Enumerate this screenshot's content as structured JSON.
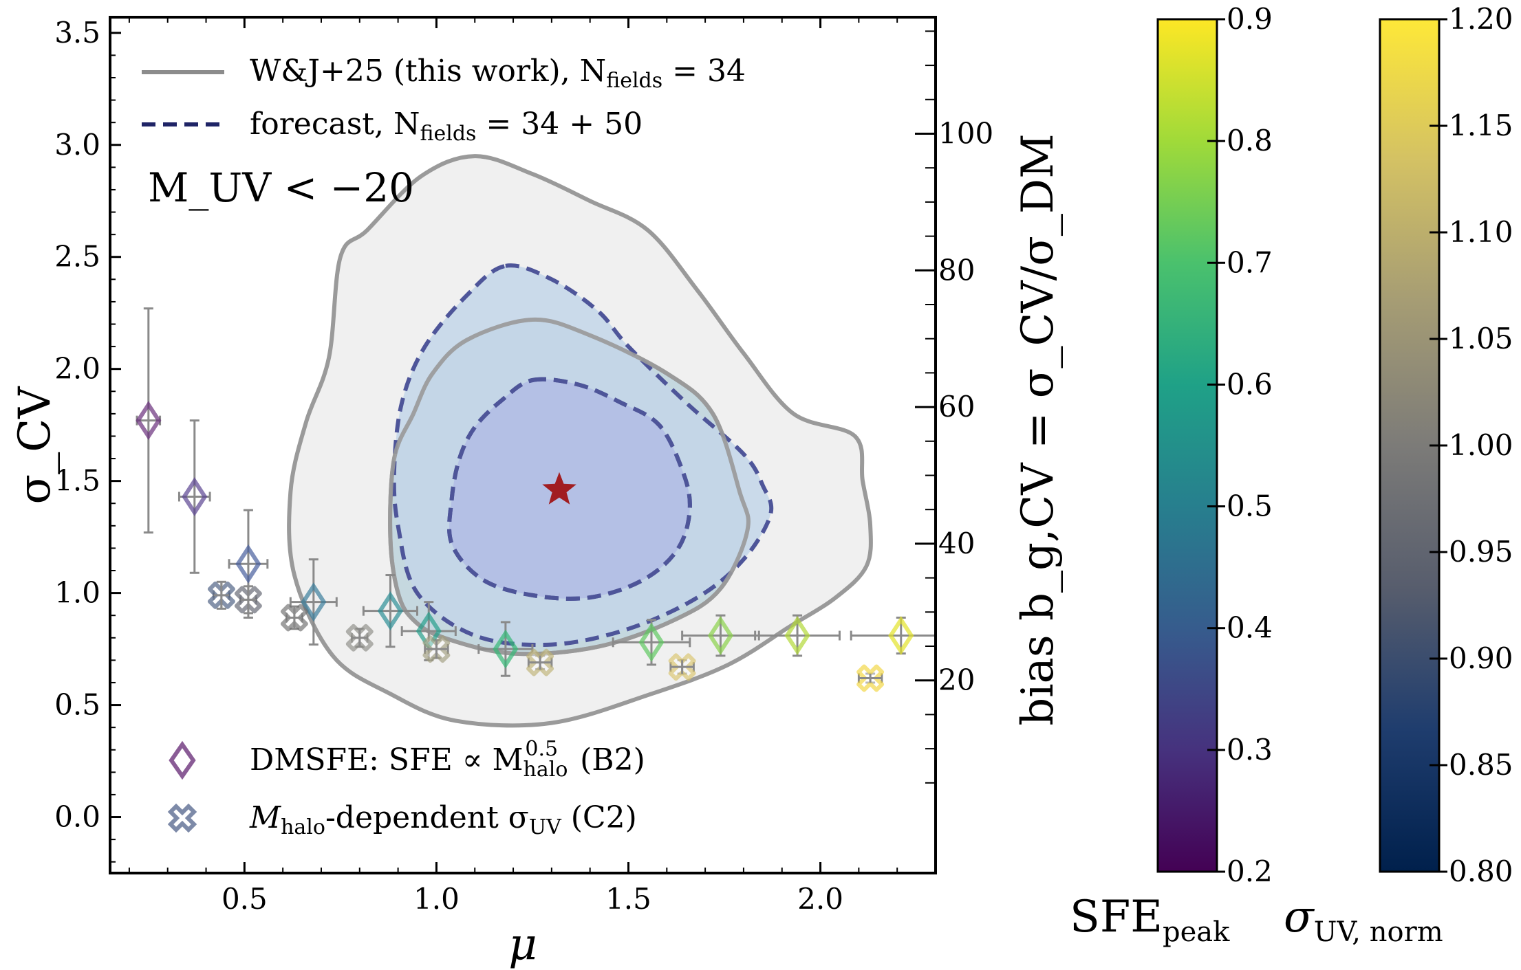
{
  "chart_data": {
    "type": "scatter",
    "annotation": "M_UV < −20",
    "xlabel": "μ",
    "ylabel": "σ_CV",
    "ylabel_right": "bias b_g,CV = σ_CV/σ_DM",
    "xlim": [
      0.15,
      2.3
    ],
    "ylim": [
      -0.25,
      3.57
    ],
    "x_ticks": [
      {
        "value": 0.5,
        "label": "0.5"
      },
      {
        "value": 1.0,
        "label": "1.0"
      },
      {
        "value": 1.5,
        "label": "1.5"
      },
      {
        "value": 2.0,
        "label": "2.0"
      }
    ],
    "y_ticks": [
      {
        "value": 0.0,
        "label": "0.0"
      },
      {
        "value": 0.5,
        "label": "0.5"
      },
      {
        "value": 1.0,
        "label": "1.0"
      },
      {
        "value": 1.5,
        "label": "1.5"
      },
      {
        "value": 2.0,
        "label": "2.0"
      },
      {
        "value": 2.5,
        "label": "2.5"
      },
      {
        "value": 3.0,
        "label": "3.0"
      },
      {
        "value": 3.5,
        "label": "3.5"
      }
    ],
    "right_axis": {
      "sigma_dm": 0.0305,
      "ticks": [
        {
          "value": 20,
          "label": "20"
        },
        {
          "value": 40,
          "label": "40"
        },
        {
          "value": 60,
          "label": "60"
        },
        {
          "value": 80,
          "label": "80"
        },
        {
          "value": 100,
          "label": "100"
        }
      ]
    },
    "best_fit": {
      "mu": 1.32,
      "sigma_cv": 1.46,
      "color": "#a11d21"
    },
    "contours": [
      {
        "name": "W&J+25 (this work) outer",
        "style": "solid",
        "color": "#9a9a9a",
        "fill": "#f0f0f0",
        "points": [
          [
            1.1,
            2.95
          ],
          [
            1.25,
            2.87
          ],
          [
            1.4,
            2.75
          ],
          [
            1.55,
            2.62
          ],
          [
            1.68,
            2.35
          ],
          [
            1.8,
            2.07
          ],
          [
            1.93,
            1.8
          ],
          [
            2.09,
            1.7
          ],
          [
            2.11,
            1.5
          ],
          [
            2.13,
            1.3
          ],
          [
            2.12,
            1.12
          ],
          [
            2.04,
            0.98
          ],
          [
            1.92,
            0.85
          ],
          [
            1.76,
            0.68
          ],
          [
            1.56,
            0.55
          ],
          [
            1.3,
            0.42
          ],
          [
            1.05,
            0.43
          ],
          [
            0.88,
            0.55
          ],
          [
            0.73,
            0.72
          ],
          [
            0.63,
            1.08
          ],
          [
            0.62,
            1.45
          ],
          [
            0.66,
            1.76
          ],
          [
            0.72,
            2.05
          ],
          [
            0.75,
            2.5
          ],
          [
            0.82,
            2.62
          ],
          [
            0.96,
            2.86
          ]
        ]
      },
      {
        "name": "W&J+25 (this work) inner",
        "style": "solid",
        "color": "#9a9a9a",
        "fill": "#c5d8df",
        "points": [
          [
            1.25,
            2.22
          ],
          [
            1.4,
            2.15
          ],
          [
            1.6,
            1.98
          ],
          [
            1.72,
            1.8
          ],
          [
            1.79,
            1.45
          ],
          [
            1.81,
            1.28
          ],
          [
            1.74,
            1.02
          ],
          [
            1.62,
            0.88
          ],
          [
            1.42,
            0.76
          ],
          [
            1.2,
            0.73
          ],
          [
            1.02,
            0.8
          ],
          [
            0.94,
            0.88
          ],
          [
            0.9,
            1.0
          ],
          [
            0.88,
            1.25
          ],
          [
            0.89,
            1.6
          ],
          [
            0.94,
            1.8
          ],
          [
            0.99,
            1.98
          ],
          [
            1.08,
            2.13
          ]
        ]
      },
      {
        "name": "forecast outer",
        "style": "dashed",
        "color": "#4e5599",
        "fill": "#c3d6e9",
        "points": [
          [
            1.18,
            2.46
          ],
          [
            1.3,
            2.4
          ],
          [
            1.42,
            2.26
          ],
          [
            1.5,
            2.1
          ],
          [
            1.65,
            1.85
          ],
          [
            1.8,
            1.62
          ],
          [
            1.85,
            1.48
          ],
          [
            1.87,
            1.35
          ],
          [
            1.8,
            1.15
          ],
          [
            1.68,
            0.98
          ],
          [
            1.5,
            0.84
          ],
          [
            1.3,
            0.77
          ],
          [
            1.1,
            0.81
          ],
          [
            0.95,
            1.0
          ],
          [
            0.9,
            1.3
          ],
          [
            0.89,
            1.55
          ],
          [
            0.91,
            1.85
          ],
          [
            0.97,
            2.1
          ],
          [
            1.08,
            2.33
          ]
        ]
      },
      {
        "name": "forecast inner",
        "style": "dashed",
        "color": "#4e5599",
        "fill": "#b1bce4",
        "points": [
          [
            1.25,
            1.95
          ],
          [
            1.37,
            1.93
          ],
          [
            1.48,
            1.85
          ],
          [
            1.58,
            1.75
          ],
          [
            1.64,
            1.55
          ],
          [
            1.66,
            1.38
          ],
          [
            1.63,
            1.2
          ],
          [
            1.54,
            1.06
          ],
          [
            1.4,
            0.98
          ],
          [
            1.25,
            0.99
          ],
          [
            1.12,
            1.06
          ],
          [
            1.04,
            1.22
          ],
          [
            1.04,
            1.42
          ],
          [
            1.06,
            1.6
          ],
          [
            1.1,
            1.74
          ],
          [
            1.17,
            1.86
          ]
        ]
      }
    ],
    "series": [
      {
        "name": "DMSFE: SFE ∝ M_halo^0.5 (B2)",
        "marker": "diamond",
        "points": [
          {
            "x": 0.25,
            "y": 1.77,
            "xerr": 0.03,
            "yerr": 0.5,
            "color": "#6a2f7c"
          },
          {
            "x": 0.37,
            "y": 1.43,
            "xerr": 0.04,
            "yerr": 0.34,
            "color": "#5b4591"
          },
          {
            "x": 0.51,
            "y": 1.13,
            "xerr": 0.05,
            "yerr": 0.24,
            "color": "#475e9c"
          },
          {
            "x": 0.68,
            "y": 0.96,
            "xerr": 0.06,
            "yerr": 0.19,
            "color": "#3a7d9b"
          },
          {
            "x": 0.88,
            "y": 0.92,
            "xerr": 0.07,
            "yerr": 0.16,
            "color": "#2c8f95"
          },
          {
            "x": 0.98,
            "y": 0.83,
            "xerr": 0.07,
            "yerr": 0.13,
            "color": "#26a08b"
          },
          {
            "x": 1.18,
            "y": 0.75,
            "xerr": 0.07,
            "yerr": 0.12,
            "color": "#35b876"
          },
          {
            "x": 1.56,
            "y": 0.78,
            "xerr": 0.1,
            "yerr": 0.1,
            "color": "#5ec860"
          },
          {
            "x": 1.74,
            "y": 0.81,
            "xerr": 0.1,
            "yerr": 0.09,
            "color": "#8ad14a"
          },
          {
            "x": 1.94,
            "y": 0.81,
            "xerr": 0.11,
            "yerr": 0.09,
            "color": "#b2d838"
          },
          {
            "x": 2.21,
            "y": 0.81,
            "xerr": 0.13,
            "yerr": 0.08,
            "color": "#e3e32a"
          }
        ]
      },
      {
        "name": "M_halo-dependent σ_UV (C2)",
        "marker": "cross",
        "points": [
          {
            "x": 0.44,
            "y": 0.99,
            "xerr": 0.02,
            "yerr": 0.06,
            "color": "#44577c"
          },
          {
            "x": 0.51,
            "y": 0.97,
            "xerr": 0.02,
            "yerr": 0.06,
            "color": "#5c5f6b"
          },
          {
            "x": 0.63,
            "y": 0.89,
            "xerr": 0.02,
            "yerr": 0.05,
            "color": "#6c6c6c"
          },
          {
            "x": 0.8,
            "y": 0.8,
            "xerr": 0.02,
            "yerr": 0.04,
            "color": "#8a8a84"
          },
          {
            "x": 1.0,
            "y": 0.75,
            "xerr": 0.03,
            "yerr": 0.04,
            "color": "#a09c7e"
          },
          {
            "x": 1.27,
            "y": 0.69,
            "xerr": 0.03,
            "yerr": 0.03,
            "color": "#bdb173"
          },
          {
            "x": 1.64,
            "y": 0.67,
            "xerr": 0.03,
            "yerr": 0.03,
            "color": "#d8c36a"
          },
          {
            "x": 2.13,
            "y": 0.62,
            "xerr": 0.03,
            "yerr": 0.02,
            "color": "#f1d43a"
          }
        ]
      }
    ],
    "legend": {
      "upper": [
        {
          "label": "W&J+25 (this work), N",
          "sub": "fields",
          "tail": " = 34",
          "style": "solid",
          "color": "#8c8c8c"
        },
        {
          "label": "forecast, N",
          "sub": "fields",
          "tail": " = 34 + 50",
          "style": "dashed",
          "color": "#1f2466"
        }
      ],
      "lower": [
        {
          "label": "DMSFE: SFE ∝ M",
          "sub": "halo",
          "sup": "0.5",
          "tail": " (B2)",
          "marker": "diamond",
          "color": "#8a5c96"
        },
        {
          "label": "M",
          "sub": "halo",
          "tail": "-dependent σ",
          "sub2": "UV",
          "tail2": " (C2)",
          "marker": "cross",
          "color": "#7d8aa8"
        }
      ]
    },
    "colorbars": [
      {
        "name": "SFE_peak",
        "label": "SFE",
        "sub": "peak",
        "range": [
          0.2,
          0.9
        ],
        "ticks": [
          "0.2",
          "0.3",
          "0.4",
          "0.5",
          "0.6",
          "0.7",
          "0.8",
          "0.9"
        ],
        "colors": [
          "#440154",
          "#46327e",
          "#365c8d",
          "#277f8e",
          "#1fa187",
          "#4ac16d",
          "#a0da39",
          "#fde725"
        ]
      },
      {
        "name": "sigma_UV_norm",
        "label": "σ",
        "sub": "UV, norm",
        "range": [
          0.8,
          1.2
        ],
        "ticks": [
          "0.80",
          "0.85",
          "0.90",
          "0.95",
          "1.00",
          "1.05",
          "1.10",
          "1.15",
          "1.20"
        ],
        "colors": [
          "#00204c",
          "#1f3d6e",
          "#575d6d",
          "#7c7b78",
          "#a59c74",
          "#d3c164",
          "#fee838"
        ]
      }
    ]
  }
}
